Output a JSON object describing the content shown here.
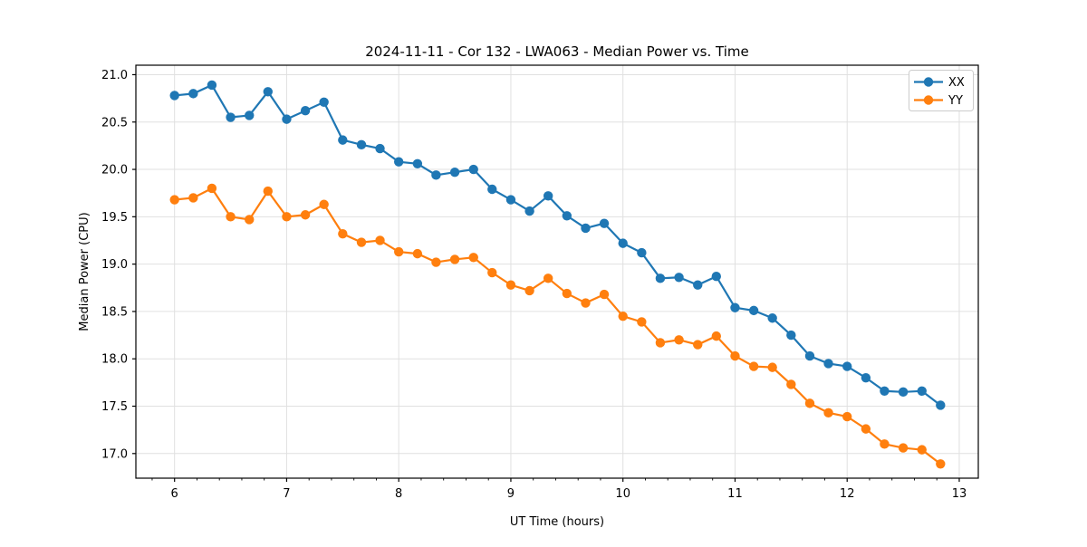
{
  "chart_data": {
    "type": "line",
    "title": "2024-11-11 - Cor 132 - LWA063 - Median Power vs. Time",
    "xlabel": "UT Time (hours)",
    "ylabel": "Median Power (CPU)",
    "xlim": [
      5.655,
      13.17
    ],
    "ylim": [
      16.74,
      21.1
    ],
    "xticks": [
      6,
      7,
      8,
      9,
      10,
      11,
      12,
      13
    ],
    "xtick_labels": [
      "6",
      "7",
      "8",
      "9",
      "10",
      "11",
      "12",
      "13"
    ],
    "minor_xtick_step": 0.2,
    "yticks": [
      17.0,
      17.5,
      18.0,
      18.5,
      19.0,
      19.5,
      20.0,
      20.5,
      21.0
    ],
    "ytick_labels": [
      "17.0",
      "17.5",
      "18.0",
      "18.5",
      "19.0",
      "19.5",
      "20.0",
      "20.5",
      "21.0"
    ],
    "grid": true,
    "legend_position": "upper right",
    "x": [
      6.0,
      6.167,
      6.333,
      6.5,
      6.667,
      6.833,
      7.0,
      7.167,
      7.333,
      7.5,
      7.667,
      7.833,
      8.0,
      8.167,
      8.333,
      8.5,
      8.667,
      8.833,
      9.0,
      9.167,
      9.333,
      9.5,
      9.667,
      9.833,
      10.0,
      10.167,
      10.333,
      10.5,
      10.667,
      10.833,
      11.0,
      11.167,
      11.333,
      11.5,
      11.667,
      11.833,
      12.0,
      12.167,
      12.333,
      12.5,
      12.667,
      12.833
    ],
    "series": [
      {
        "name": "XX",
        "color": "#1f77b4",
        "values": [
          20.78,
          20.8,
          20.89,
          20.55,
          20.57,
          20.82,
          20.53,
          20.62,
          20.71,
          20.31,
          20.26,
          20.22,
          20.08,
          20.06,
          19.94,
          19.97,
          20.0,
          19.79,
          19.68,
          19.56,
          19.72,
          19.51,
          19.38,
          19.43,
          19.22,
          19.12,
          18.85,
          18.86,
          18.78,
          18.87,
          18.54,
          18.51,
          18.43,
          18.25,
          18.03,
          17.95,
          17.92,
          17.8,
          17.66,
          17.65,
          17.66,
          17.51
        ]
      },
      {
        "name": "YY",
        "color": "#ff7f0e",
        "values": [
          19.68,
          19.7,
          19.8,
          19.5,
          19.47,
          19.77,
          19.5,
          19.52,
          19.63,
          19.32,
          19.23,
          19.25,
          19.13,
          19.11,
          19.02,
          19.05,
          19.07,
          18.91,
          18.78,
          18.72,
          18.85,
          18.69,
          18.59,
          18.68,
          18.45,
          18.39,
          18.17,
          18.2,
          18.15,
          18.24,
          18.03,
          17.92,
          17.91,
          17.73,
          17.53,
          17.43,
          17.39,
          17.26,
          17.1,
          17.06,
          17.04,
          16.89
        ]
      }
    ]
  },
  "style": {
    "grid_color": "#e0e0e0",
    "spine_color": "#000000",
    "background": "#ffffff",
    "legend_border": "#cccccc"
  }
}
